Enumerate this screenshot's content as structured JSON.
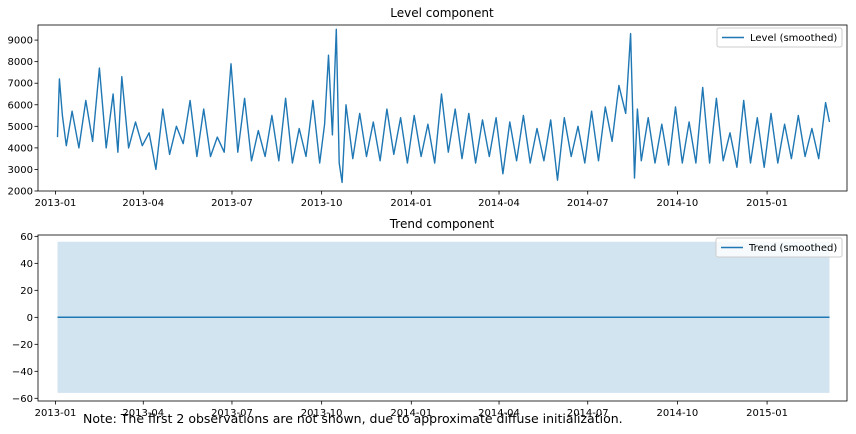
{
  "note": "Note: The first 2 observations are not shown, due to approximate diffuse initialization.",
  "colors": {
    "line": "#1f77b4",
    "band": "#1f77b4"
  },
  "chart_data": [
    {
      "type": "line",
      "title": "Level component",
      "x_tick_labels": [
        "2013-01",
        "2013-04",
        "2013-07",
        "2013-10",
        "2014-01",
        "2014-04",
        "2014-07",
        "2014-10",
        "2015-01"
      ],
      "x_range": [
        "2012-12-14",
        "2015-03-24"
      ],
      "ylim": [
        2000,
        9700
      ],
      "y_ticks": [
        2000,
        3000,
        4000,
        5000,
        6000,
        7000,
        8000,
        9000
      ],
      "legend": {
        "position": "top-right",
        "label": "Level (smoothed)"
      },
      "grid": false,
      "series": [
        {
          "name": "Level (smoothed)",
          "x": [
            "2013-01-03",
            "2013-01-05",
            "2013-01-08",
            "2013-01-12",
            "2013-01-18",
            "2013-01-25",
            "2013-02-01",
            "2013-02-08",
            "2013-02-15",
            "2013-02-22",
            "2013-03-01",
            "2013-03-06",
            "2013-03-10",
            "2013-03-17",
            "2013-03-24",
            "2013-03-31",
            "2013-04-07",
            "2013-04-14",
            "2013-04-21",
            "2013-04-28",
            "2013-05-05",
            "2013-05-12",
            "2013-05-19",
            "2013-05-26",
            "2013-06-02",
            "2013-06-09",
            "2013-06-16",
            "2013-06-23",
            "2013-06-30",
            "2013-07-07",
            "2013-07-14",
            "2013-07-21",
            "2013-07-28",
            "2013-08-04",
            "2013-08-11",
            "2013-08-18",
            "2013-08-25",
            "2013-09-01",
            "2013-09-08",
            "2013-09-15",
            "2013-09-22",
            "2013-09-29",
            "2013-10-04",
            "2013-10-08",
            "2013-10-12",
            "2013-10-16",
            "2013-10-19",
            "2013-10-22",
            "2013-10-26",
            "2013-11-02",
            "2013-11-09",
            "2013-11-16",
            "2013-11-23",
            "2013-11-30",
            "2013-12-07",
            "2013-12-14",
            "2013-12-21",
            "2013-12-28",
            "2014-01-04",
            "2014-01-11",
            "2014-01-18",
            "2014-01-25",
            "2014-02-01",
            "2014-02-08",
            "2014-02-15",
            "2014-02-22",
            "2014-03-01",
            "2014-03-08",
            "2014-03-15",
            "2014-03-22",
            "2014-03-29",
            "2014-04-05",
            "2014-04-12",
            "2014-04-19",
            "2014-04-26",
            "2014-05-03",
            "2014-05-10",
            "2014-05-17",
            "2014-05-24",
            "2014-05-31",
            "2014-06-07",
            "2014-06-14",
            "2014-06-21",
            "2014-06-28",
            "2014-07-05",
            "2014-07-12",
            "2014-07-19",
            "2014-07-26",
            "2014-08-02",
            "2014-08-09",
            "2014-08-14",
            "2014-08-18",
            "2014-08-21",
            "2014-08-25",
            "2014-09-01",
            "2014-09-08",
            "2014-09-15",
            "2014-09-22",
            "2014-09-29",
            "2014-10-06",
            "2014-10-13",
            "2014-10-20",
            "2014-10-27",
            "2014-11-03",
            "2014-11-10",
            "2014-11-17",
            "2014-11-24",
            "2014-12-01",
            "2014-12-08",
            "2014-12-15",
            "2014-12-22",
            "2014-12-29",
            "2015-01-05",
            "2015-01-12",
            "2015-01-19",
            "2015-01-26",
            "2015-02-02",
            "2015-02-09",
            "2015-02-16",
            "2015-02-23",
            "2015-03-02",
            "2015-03-06"
          ],
          "values": [
            4500,
            7200,
            5500,
            4100,
            5700,
            4000,
            6200,
            4300,
            7700,
            4000,
            6500,
            3800,
            7300,
            4000,
            5200,
            4100,
            4700,
            3000,
            5800,
            3700,
            5000,
            4200,
            6200,
            3600,
            5800,
            3600,
            4500,
            3800,
            7900,
            3800,
            6300,
            3400,
            4800,
            3600,
            5500,
            3400,
            6300,
            3300,
            4900,
            3600,
            6200,
            3300,
            5100,
            8300,
            4600,
            9500,
            3300,
            2400,
            6000,
            3500,
            5600,
            3600,
            5200,
            3400,
            5800,
            3700,
            5400,
            3300,
            5500,
            3600,
            5100,
            3300,
            6500,
            3800,
            5800,
            3500,
            5600,
            3300,
            5300,
            3600,
            5400,
            2800,
            5200,
            3400,
            5500,
            3300,
            4900,
            3400,
            5300,
            2500,
            5400,
            3600,
            5000,
            3300,
            5700,
            3400,
            5900,
            4300,
            6900,
            5600,
            9300,
            2600,
            5800,
            3400,
            5400,
            3300,
            5100,
            3200,
            5900,
            3300,
            5200,
            3300,
            6800,
            3300,
            6300,
            3400,
            4700,
            3100,
            6200,
            3300,
            5400,
            3100,
            5600,
            3300,
            5100,
            3500,
            5500,
            3600,
            4900,
            3500,
            6100,
            5200
          ]
        }
      ]
    },
    {
      "type": "area",
      "title": "Trend component",
      "x_tick_labels": [
        "2013-01",
        "2013-04",
        "2013-07",
        "2013-10",
        "2014-01",
        "2014-04",
        "2014-07",
        "2014-10",
        "2015-01"
      ],
      "x_range": [
        "2012-12-14",
        "2015-03-24"
      ],
      "ylim": [
        -62,
        61
      ],
      "y_ticks": [
        -60,
        -40,
        -20,
        0,
        20,
        40,
        60
      ],
      "legend": {
        "position": "top-right",
        "label": "Trend (smoothed)"
      },
      "grid": false,
      "series": [
        {
          "name": "Trend (smoothed)",
          "x": [
            "2013-01-03",
            "2015-03-06"
          ],
          "values": [
            0,
            0
          ],
          "band_lower": -56,
          "band_upper": 56
        }
      ]
    }
  ]
}
